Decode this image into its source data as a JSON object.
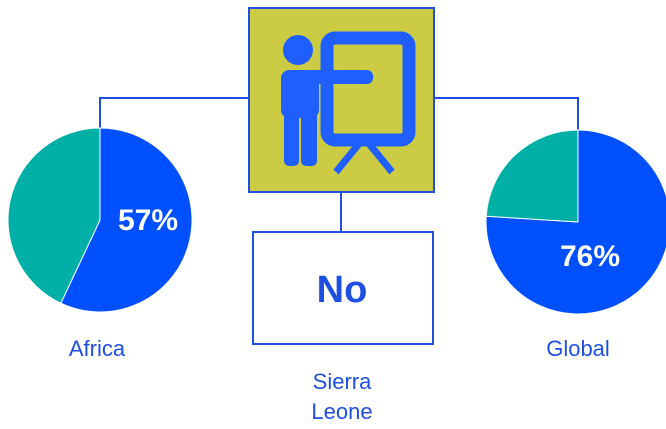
{
  "chart_data": [
    {
      "type": "pie",
      "label": "Africa",
      "values": [
        57,
        43
      ],
      "value_labels": [
        "57%",
        null
      ],
      "colors": [
        "#0050ff",
        "#00b0a6"
      ]
    },
    {
      "type": "pie",
      "label": "Global",
      "values": [
        76,
        24
      ],
      "value_labels": [
        "76%",
        null
      ],
      "colors": [
        "#0050ff",
        "#00b0a6"
      ]
    }
  ],
  "center": {
    "answer": "No",
    "country": [
      "Sierra",
      "Leone"
    ]
  }
}
